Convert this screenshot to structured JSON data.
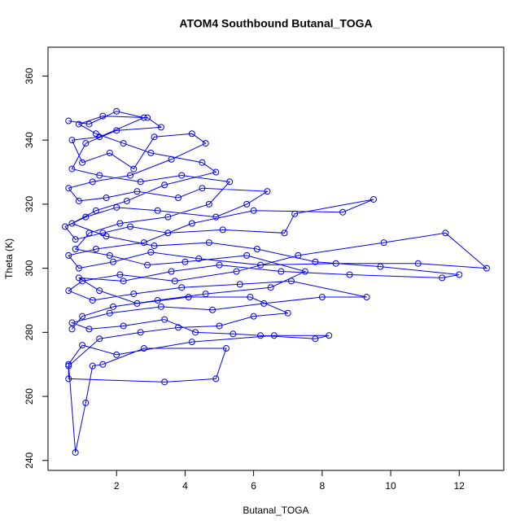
{
  "chart_data": {
    "type": "line",
    "title": "ATOM4 Southbound Butanal_TOGA",
    "x_label": "Butanal_TOGA",
    "y_label": "Theta (K)",
    "xlim": [
      0,
      13.3
    ],
    "ylim": [
      236.9,
      369
    ],
    "xticks": [
      2,
      4,
      6,
      8,
      10,
      12
    ],
    "yticks": [
      240,
      260,
      280,
      300,
      320,
      340,
      360
    ],
    "x": [
      0.6,
      1.2,
      2.0,
      2.8,
      1.5,
      0.7,
      1.0,
      1.8,
      2.5,
      3.1,
      4.2,
      4.6,
      3.6,
      2.4,
      1.3,
      0.6,
      0.9,
      1.7,
      2.6,
      3.8,
      4.5,
      6.4,
      5.8,
      4.9,
      3.2,
      2.0,
      1.1,
      0.5,
      0.8,
      1.6,
      2.4,
      3.5,
      5.1,
      6.9,
      7.2,
      9.5,
      8.6,
      6.0,
      4.2,
      2.8,
      1.4,
      0.6,
      0.9,
      1.9,
      3.0,
      4.4,
      6.2,
      8.4,
      10.8,
      12.8,
      11.6,
      9.8,
      7.3,
      5.5,
      3.7,
      2.1,
      1.0,
      0.6,
      1.3,
      2.5,
      3.9,
      5.6,
      7.1,
      9.3,
      8.0,
      6.3,
      4.8,
      3.3,
      1.8,
      0.7,
      1.2,
      2.2,
      3.4,
      4.3,
      5.4,
      6.2,
      7.8,
      8.2,
      6.6,
      4.2,
      2.0,
      1.0,
      0.6,
      0.8,
      1.1,
      1.3,
      1.6,
      2.8,
      5.2,
      4.9,
      3.4,
      0.6,
      0.6,
      1.5,
      2.7,
      3.8,
      5.0,
      6.0,
      7.0,
      5.9,
      4.1,
      2.6,
      1.5,
      0.9,
      2.2,
      3.6,
      5.0,
      6.8,
      8.8,
      11.5,
      12.0,
      9.7,
      7.8,
      6.1,
      4.7,
      3.1,
      1.7,
      0.7,
      1.4,
      2.3,
      3.4,
      4.9,
      4.5,
      3.0,
      2.2,
      1.4,
      0.9,
      1.6,
      2.9,
      3.3,
      2.0,
      1.1,
      0.7,
      1.5,
      2.7,
      3.9,
      5.3,
      4.7,
      3.5,
      2.1,
      1.2,
      0.8,
      1.8,
      2.9,
      4.0,
      5.8,
      7.5,
      6.5,
      4.6,
      3.2,
      1.9,
      1.0,
      0.7
    ],
    "series": [
      {
        "color": "#0000ff",
        "values": [
          346,
          345,
          349,
          347,
          341,
          340,
          333,
          336,
          331,
          341,
          342,
          339,
          334,
          329,
          327,
          325,
          321,
          322,
          324,
          322,
          325,
          324,
          320,
          316,
          318,
          319,
          316,
          313,
          309,
          311,
          313,
          311,
          312,
          311,
          317,
          321.5,
          317.5,
          318,
          314,
          308,
          306,
          304,
          300,
          302,
          305,
          303,
          301,
          301.5,
          301.5,
          300,
          311,
          308,
          304,
          299,
          296,
          298,
          296,
          293,
          290,
          292,
          294,
          295,
          296,
          291,
          291,
          289,
          287,
          288,
          286,
          283,
          281,
          282,
          284,
          280,
          279.5,
          279,
          278,
          279,
          279,
          277,
          273,
          276,
          270,
          242.5,
          258,
          269.5,
          270,
          275,
          275,
          265.5,
          264.5,
          265.5,
          269.5,
          278,
          280,
          281.5,
          282,
          285,
          286,
          291,
          291,
          289,
          293,
          297,
          296,
          299,
          301,
          299,
          298,
          297,
          298,
          300.5,
          302,
          306,
          308,
          307,
          310,
          314,
          318,
          321,
          326,
          330,
          333,
          336,
          339,
          342,
          345,
          347.5,
          347,
          344,
          343,
          339,
          331,
          329,
          327,
          329,
          327,
          320,
          316,
          314,
          311,
          306,
          304,
          301,
          302,
          304,
          299,
          294,
          292,
          290,
          288,
          285,
          281
        ]
      }
    ]
  }
}
